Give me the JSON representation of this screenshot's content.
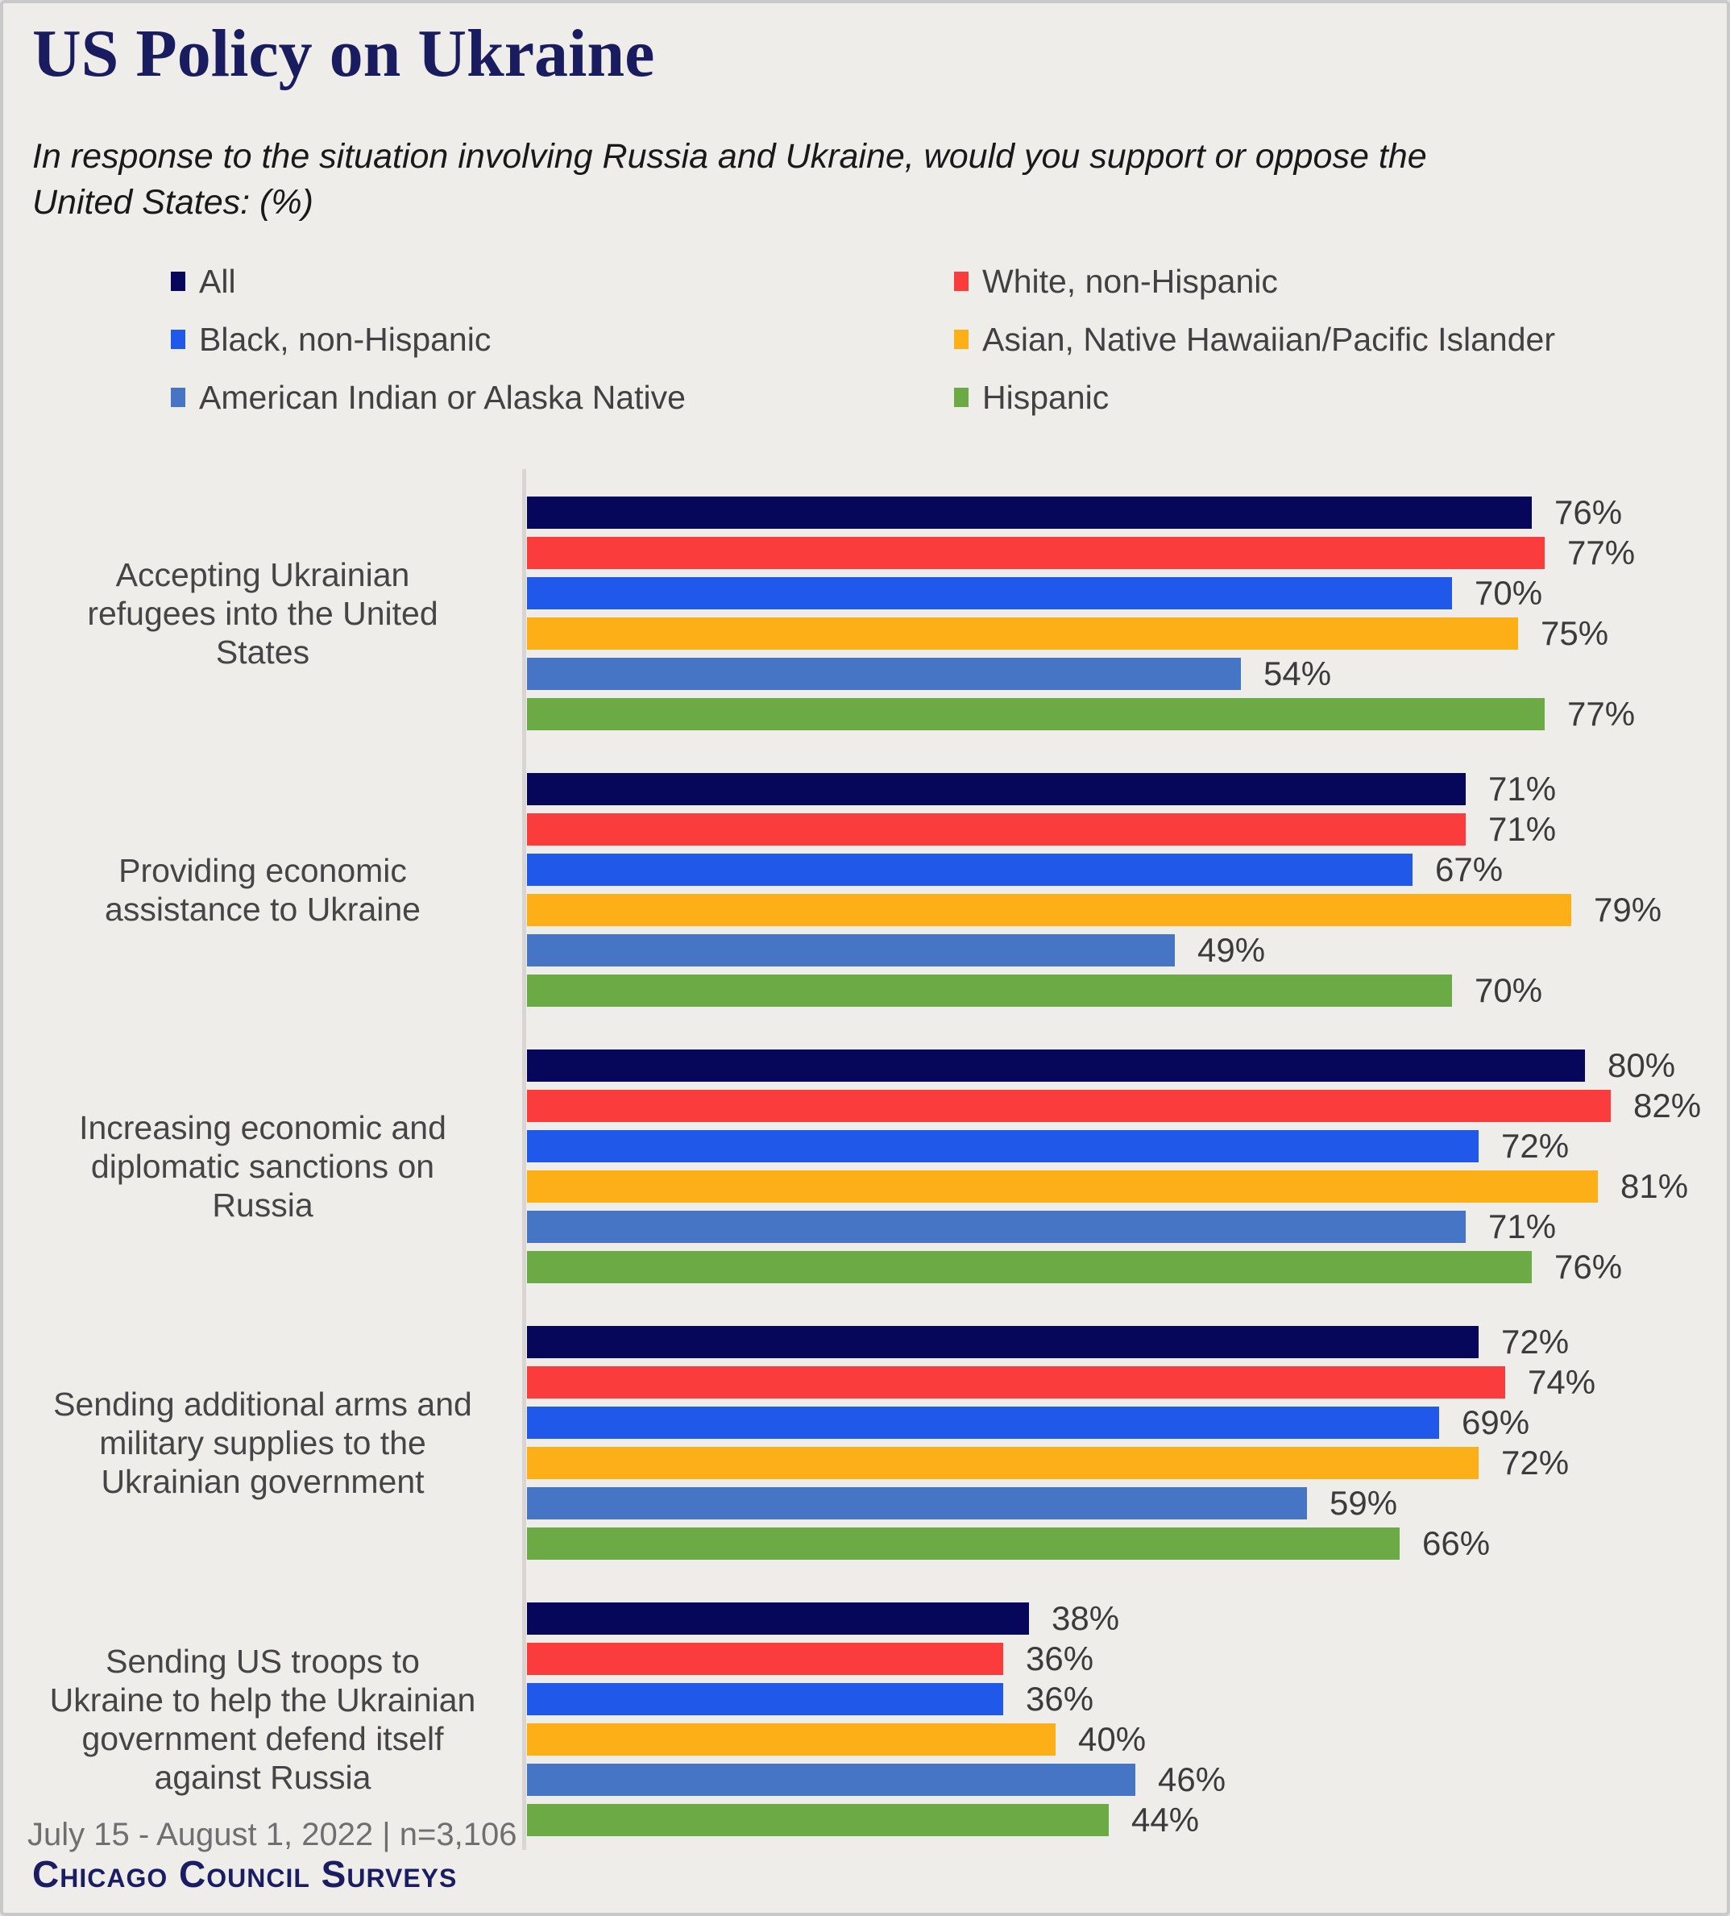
{
  "header": {
    "title": "US Policy on Ukraine",
    "subtitle": "In response to the situation involving Russia and Ukraine, would you support or oppose the\nUnited States: (%)"
  },
  "chart_data": {
    "type": "bar",
    "orientation": "horizontal",
    "unit": "%",
    "xlim": [
      0,
      91
    ],
    "grid": false,
    "value_labels": true,
    "legend_position": "top",
    "categories": [
      "Accepting Ukrainian\nrefugees into the United\nStates",
      "Providing economic\nassistance to Ukraine",
      "Increasing economic and\ndiplomatic sanctions on\nRussia",
      "Sending additional arms and\nmilitary supplies to the\nUkrainian government",
      "Sending US troops to\nUkraine to help the Ukrainian\ngovernment defend itself\nagainst Russia"
    ],
    "series": [
      {
        "name": "All",
        "color": "#06075a",
        "values": [
          76,
          71,
          80,
          72,
          38
        ]
      },
      {
        "name": "White, non-Hispanic",
        "color": "#fb3c3c",
        "values": [
          77,
          71,
          82,
          74,
          36
        ]
      },
      {
        "name": "Black, non-Hispanic",
        "color": "#2059e9",
        "values": [
          70,
          67,
          72,
          69,
          36
        ]
      },
      {
        "name": "Asian, Native Hawaiian/Pacific Islander",
        "color": "#fcaf17",
        "values": [
          75,
          79,
          81,
          72,
          40
        ]
      },
      {
        "name": "American Indian or Alaska Native",
        "color": "#4575c4",
        "values": [
          54,
          49,
          71,
          59,
          46
        ]
      },
      {
        "name": "Hispanic",
        "color": "#6caa46",
        "values": [
          77,
          70,
          76,
          66,
          44
        ]
      }
    ]
  },
  "footer": {
    "note": "July 15 - August 1, 2022 | n=3,106",
    "logo": "Chicago Council Surveys"
  }
}
